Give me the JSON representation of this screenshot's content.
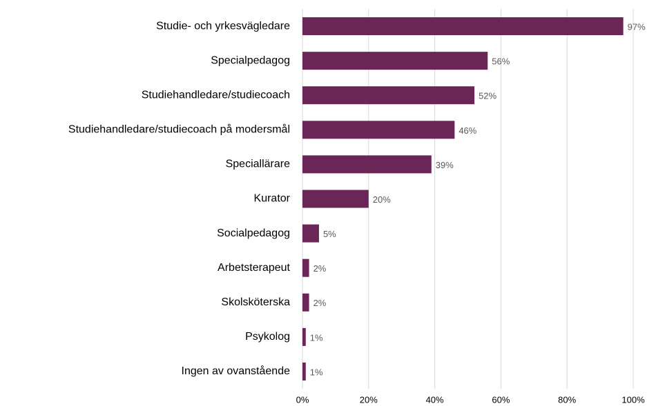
{
  "chart_data": {
    "type": "bar",
    "orientation": "horizontal",
    "categories": [
      "Studie- och yrkesvägledare",
      "Specialpedagog",
      "Studiehandledare/studiecoach",
      "Studiehandledare/studiecoach på modersmål",
      "Speciallärare",
      "Kurator",
      "Socialpedagog",
      "Arbetsterapeut",
      "Skolsköterska",
      "Psykolog",
      "Ingen av ovanstående"
    ],
    "values": [
      97,
      56,
      52,
      46,
      39,
      20,
      5,
      2,
      2,
      1,
      1
    ],
    "value_labels": [
      "97%",
      "56%",
      "52%",
      "46%",
      "39%",
      "20%",
      "5%",
      "2%",
      "2%",
      "1%",
      "1%"
    ],
    "color": "#6b2658",
    "xlim": [
      0,
      100
    ],
    "xticks": [
      {
        "value": 0,
        "label": "0%"
      },
      {
        "value": 20,
        "label": "20%"
      },
      {
        "value": 40,
        "label": "40%"
      },
      {
        "value": 60,
        "label": "60%"
      },
      {
        "value": 80,
        "label": "80%"
      },
      {
        "value": 100,
        "label": "100%"
      }
    ],
    "grid": true
  }
}
